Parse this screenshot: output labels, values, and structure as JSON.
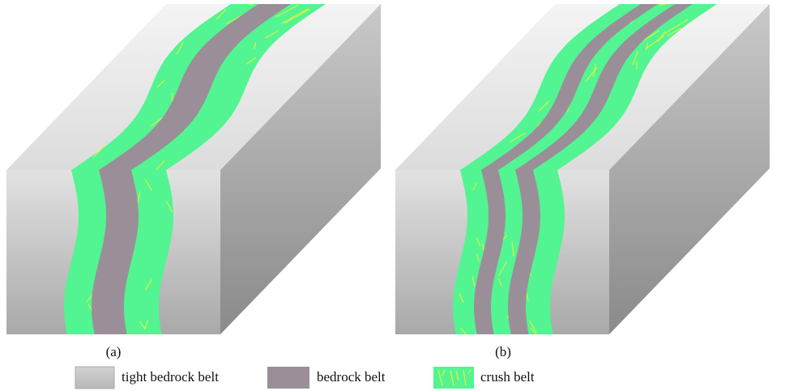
{
  "panels": {
    "a": "(a)",
    "b": "(b)"
  },
  "legend": [
    {
      "label": "tight bedrock belt"
    },
    {
      "label": "bedrock belt"
    },
    {
      "label": "crush belt"
    }
  ]
}
